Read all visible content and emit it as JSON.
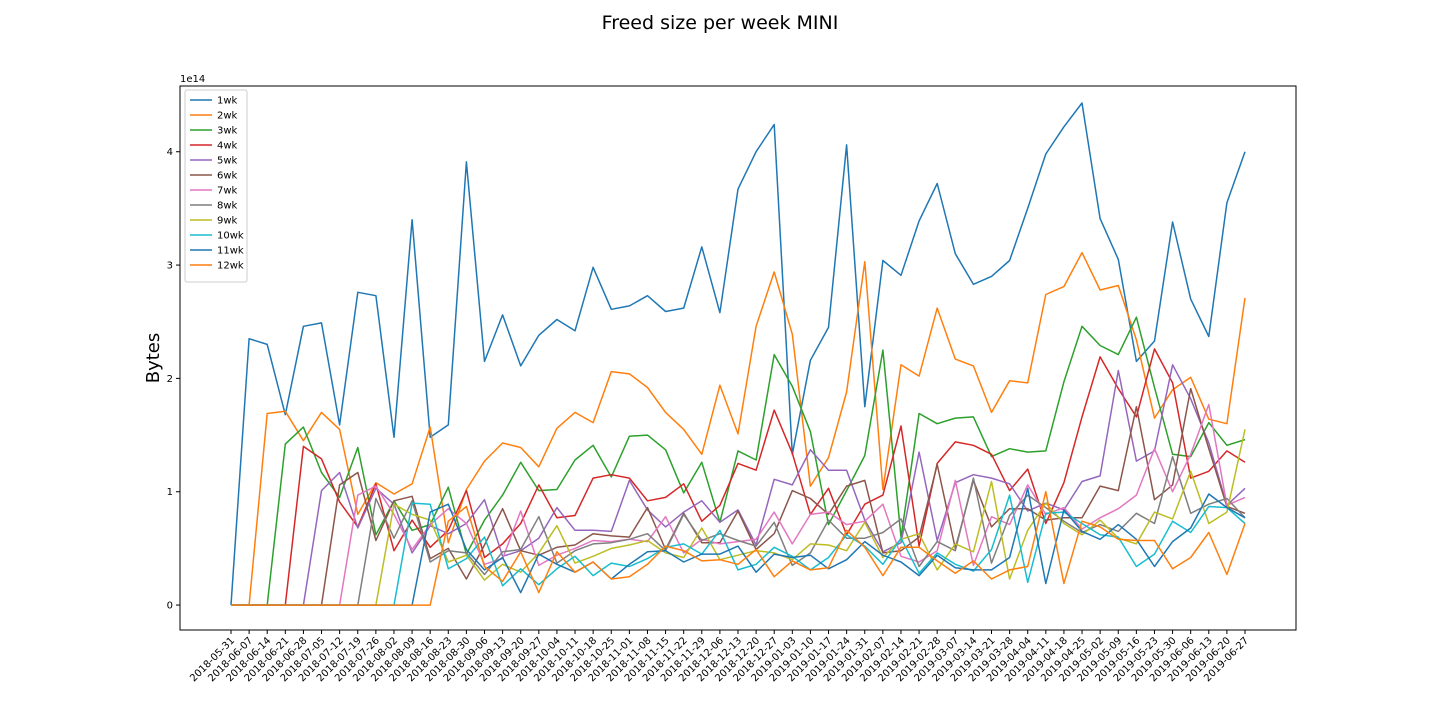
{
  "chart_data": {
    "type": "line",
    "title": "Freed size per week MINI",
    "xlabel": "",
    "ylabel": "Bytes",
    "y_offset_label": "1e14",
    "ylim": [
      -0.22,
      4.58
    ],
    "yticks": [
      0,
      1,
      2,
      3,
      4
    ],
    "ytick_labels": [
      "0",
      "1",
      "2",
      "3",
      "4"
    ],
    "grid": false,
    "legend_position": "upper-left",
    "categories": [
      "2018-05-31",
      "2018-06-07",
      "2018-06-14",
      "2018-06-21",
      "2018-06-28",
      "2018-07-05",
      "2018-07-12",
      "2018-07-19",
      "2018-07-26",
      "2018-08-02",
      "2018-08-09",
      "2018-08-16",
      "2018-08-23",
      "2018-08-30",
      "2018-09-06",
      "2018-09-13",
      "2018-09-20",
      "2018-09-27",
      "2018-10-04",
      "2018-10-11",
      "2018-10-18",
      "2018-10-25",
      "2018-11-01",
      "2018-11-08",
      "2018-11-15",
      "2018-11-22",
      "2018-11-29",
      "2018-12-06",
      "2018-12-13",
      "2018-12-20",
      "2018-12-27",
      "2019-01-03",
      "2019-01-10",
      "2019-01-17",
      "2019-01-24",
      "2019-01-31",
      "2019-02-07",
      "2019-02-14",
      "2019-02-21",
      "2019-02-28",
      "2019-03-07",
      "2019-03-14",
      "2019-03-21",
      "2019-03-28",
      "2019-04-04",
      "2019-04-11",
      "2019-04-18",
      "2019-04-25",
      "2019-05-02",
      "2019-05-09",
      "2019-05-16",
      "2019-05-23",
      "2019-05-30",
      "2019-06-06",
      "2019-06-13",
      "2019-06-20",
      "2019-06-27"
    ],
    "series": [
      {
        "name": "1wk",
        "color": "#1f77b4",
        "values": [
          0,
          2.35,
          2.3,
          1.68,
          2.46,
          2.49,
          1.59,
          2.76,
          2.73,
          1.48,
          3.4,
          1.48,
          1.59,
          3.91,
          2.15,
          2.56,
          2.11,
          2.38,
          2.52,
          2.42,
          2.98,
          2.61,
          2.64,
          2.73,
          2.59,
          2.62,
          3.16,
          2.58,
          3.67,
          4.0,
          4.24,
          1.33,
          2.16,
          2.45,
          4.06,
          1.75,
          3.04,
          2.91,
          3.39,
          3.72,
          3.1,
          2.83,
          2.9,
          3.04,
          3.5,
          3.98,
          4.22,
          4.43,
          3.41,
          3.05,
          2.15,
          2.33,
          3.38,
          2.7,
          2.37,
          3.55,
          4.0
        ]
      },
      {
        "name": "2wk",
        "color": "#ff7f0e",
        "values": [
          0,
          0,
          1.69,
          1.71,
          1.45,
          1.7,
          1.55,
          0.8,
          1.08,
          0.98,
          1.07,
          1.57,
          0.55,
          1.02,
          1.27,
          1.43,
          1.39,
          1.22,
          1.56,
          1.7,
          1.61,
          2.06,
          2.04,
          1.92,
          1.7,
          1.55,
          1.33,
          1.94,
          1.51,
          2.46,
          2.94,
          2.39,
          1.05,
          1.3,
          1.88,
          3.03,
          1.02,
          2.12,
          2.02,
          2.62,
          2.17,
          2.11,
          1.7,
          1.98,
          1.96,
          2.74,
          2.81,
          3.11,
          2.78,
          2.82,
          2.34,
          1.65,
          1.9,
          2.01,
          1.64,
          1.6,
          2.71
        ]
      },
      {
        "name": "3wk",
        "color": "#2ca02c",
        "values": [
          0,
          0,
          0,
          1.42,
          1.57,
          1.17,
          0.95,
          1.39,
          0.62,
          0.92,
          0.66,
          0.71,
          1.04,
          0.45,
          0.75,
          0.97,
          1.26,
          1.01,
          1.02,
          1.28,
          1.41,
          1.13,
          1.49,
          1.5,
          1.37,
          0.99,
          1.26,
          0.73,
          1.36,
          1.28,
          2.21,
          1.93,
          1.53,
          0.71,
          1.01,
          1.32,
          2.25,
          0.6,
          1.69,
          1.6,
          1.65,
          1.66,
          1.31,
          1.38,
          1.35,
          1.36,
          1.97,
          2.46,
          2.29,
          2.21,
          2.54,
          1.92,
          1.33,
          1.31,
          1.61,
          1.41,
          1.46
        ]
      },
      {
        "name": "4wk",
        "color": "#d62728",
        "values": [
          0,
          0,
          0,
          0,
          1.4,
          1.29,
          0.91,
          0.69,
          1.07,
          0.48,
          0.75,
          0.51,
          0.66,
          1.01,
          0.42,
          0.54,
          0.72,
          1.06,
          0.77,
          0.79,
          1.12,
          1.15,
          1.12,
          0.92,
          0.95,
          1.07,
          0.74,
          0.88,
          1.25,
          1.19,
          1.72,
          1.34,
          0.8,
          1.03,
          0.62,
          0.89,
          0.97,
          1.58,
          0.52,
          1.25,
          1.44,
          1.41,
          1.33,
          1.01,
          1.2,
          0.72,
          1.08,
          1.66,
          2.19,
          1.91,
          1.66,
          2.26,
          1.96,
          1.12,
          1.18,
          1.36,
          1.26
        ]
      },
      {
        "name": "5wk",
        "color": "#9467bd",
        "values": [
          0,
          0,
          0,
          0,
          0,
          1.01,
          1.17,
          0.68,
          1.03,
          0.89,
          0.46,
          0.7,
          0.63,
          0.72,
          0.93,
          0.43,
          0.48,
          0.59,
          0.86,
          0.66,
          0.66,
          0.65,
          1.1,
          0.84,
          0.69,
          0.82,
          0.92,
          0.73,
          0.84,
          0.53,
          1.11,
          1.06,
          1.37,
          1.19,
          1.19,
          0.75,
          0.47,
          0.55,
          1.35,
          0.57,
          1.08,
          1.15,
          1.12,
          1.07,
          0.83,
          0.9,
          0.84,
          1.09,
          1.14,
          2.07,
          1.27,
          1.36,
          2.12,
          1.82,
          1.43,
          0.88,
          1.03
        ]
      },
      {
        "name": "6wk",
        "color": "#8c564b",
        "values": [
          0,
          0,
          0,
          0,
          0,
          0,
          1.06,
          1.17,
          0.57,
          0.92,
          0.96,
          0.41,
          0.5,
          0.23,
          0.53,
          0.85,
          0.48,
          0.44,
          0.51,
          0.53,
          0.63,
          0.61,
          0.6,
          0.86,
          0.49,
          0.81,
          0.55,
          0.55,
          0.83,
          0.49,
          0.63,
          1.01,
          0.94,
          0.8,
          1.05,
          1.1,
          0.46,
          0.48,
          0.6,
          1.24,
          0.5,
          1.1,
          0.69,
          0.85,
          0.85,
          0.75,
          0.77,
          0.77,
          1.05,
          1.01,
          1.75,
          0.93,
          1.06,
          1.91,
          1.38,
          0.87,
          0.81
        ]
      },
      {
        "name": "7wk",
        "color": "#e377c2",
        "values": [
          0,
          0,
          0,
          0,
          0,
          0,
          0,
          0.97,
          1.05,
          0.8,
          0.49,
          0.71,
          0.85,
          0.72,
          0.36,
          0.41,
          0.83,
          0.35,
          0.44,
          0.5,
          0.57,
          0.56,
          0.58,
          0.56,
          0.78,
          0.46,
          0.58,
          0.54,
          0.56,
          0.58,
          0.82,
          0.54,
          0.8,
          0.82,
          0.71,
          0.74,
          0.89,
          0.43,
          0.38,
          0.48,
          1.1,
          0.35,
          0.78,
          0.71,
          1.06,
          0.8,
          0.86,
          0.67,
          0.77,
          0.85,
          0.97,
          1.38,
          1.0,
          1.33,
          1.77,
          0.88,
          0.95
        ]
      },
      {
        "name": "8wk",
        "color": "#7f7f7f",
        "values": [
          0,
          0,
          0,
          0,
          0,
          0,
          0,
          0,
          0.94,
          0.59,
          0.92,
          0.38,
          0.48,
          0.46,
          0.27,
          0.47,
          0.49,
          0.78,
          0.37,
          0.48,
          0.54,
          0.55,
          0.58,
          0.63,
          0.48,
          0.8,
          0.57,
          0.63,
          0.57,
          0.52,
          0.73,
          0.35,
          0.46,
          0.75,
          0.59,
          0.59,
          0.64,
          0.76,
          0.34,
          0.56,
          0.48,
          1.12,
          0.37,
          0.79,
          0.97,
          0.86,
          0.74,
          0.64,
          0.71,
          0.65,
          0.81,
          0.72,
          1.31,
          0.81,
          0.89,
          0.94,
          0.77
        ]
      },
      {
        "name": "9wk",
        "color": "#bcbd22",
        "values": [
          0,
          0,
          0,
          0,
          0,
          0,
          0,
          0,
          0,
          0.89,
          0.8,
          0.75,
          0.38,
          0.44,
          0.22,
          0.36,
          0.29,
          0.46,
          0.7,
          0.37,
          0.43,
          0.5,
          0.53,
          0.57,
          0.46,
          0.42,
          0.68,
          0.4,
          0.44,
          0.48,
          0.46,
          0.4,
          0.54,
          0.53,
          0.48,
          0.73,
          0.42,
          0.58,
          0.63,
          0.31,
          0.54,
          0.47,
          1.09,
          0.23,
          0.66,
          0.9,
          0.72,
          0.62,
          0.75,
          0.59,
          0.54,
          0.82,
          0.76,
          1.18,
          0.72,
          0.82,
          1.55
        ]
      },
      {
        "name": "10wk",
        "color": "#17becf",
        "values": [
          0,
          0,
          0,
          0,
          0,
          0,
          0,
          0,
          0,
          0,
          0.9,
          0.89,
          0.32,
          0.41,
          0.6,
          0.17,
          0.32,
          0.18,
          0.32,
          0.43,
          0.26,
          0.37,
          0.34,
          0.41,
          0.51,
          0.54,
          0.45,
          0.66,
          0.31,
          0.36,
          0.51,
          0.43,
          0.31,
          0.42,
          0.62,
          0.52,
          0.36,
          0.59,
          0.28,
          0.46,
          0.36,
          0.3,
          0.49,
          0.97,
          0.2,
          0.81,
          0.82,
          0.72,
          0.62,
          0.6,
          0.34,
          0.45,
          0.74,
          0.64,
          0.87,
          0.86,
          0.72
        ]
      },
      {
        "name": "11wk",
        "color": "#1f77b4",
        "values": [
          0,
          0,
          0,
          0,
          0,
          0,
          0,
          0,
          0,
          0,
          0,
          0.82,
          0.89,
          0.49,
          0.31,
          0.42,
          0.11,
          0.45,
          0.36,
          0.29,
          0.38,
          0.23,
          0.36,
          0.47,
          0.48,
          0.38,
          0.45,
          0.45,
          0.52,
          0.29,
          0.45,
          0.42,
          0.44,
          0.32,
          0.4,
          0.56,
          0.44,
          0.38,
          0.26,
          0.44,
          0.33,
          0.31,
          0.31,
          0.42,
          1.03,
          0.19,
          0.84,
          0.65,
          0.58,
          0.71,
          0.58,
          0.34,
          0.56,
          0.68,
          0.98,
          0.86,
          0.77
        ]
      },
      {
        "name": "12wk",
        "color": "#ff7f0e",
        "values": [
          0,
          0,
          0,
          0,
          0,
          0,
          0,
          0,
          0,
          0,
          0,
          0,
          0.74,
          0.87,
          0.34,
          0.21,
          0.47,
          0.11,
          0.47,
          0.29,
          0.38,
          0.23,
          0.25,
          0.36,
          0.52,
          0.48,
          0.39,
          0.4,
          0.36,
          0.49,
          0.25,
          0.39,
          0.31,
          0.33,
          0.66,
          0.51,
          0.26,
          0.51,
          0.51,
          0.39,
          0.28,
          0.39,
          0.23,
          0.31,
          0.34,
          1.0,
          0.19,
          0.74,
          0.69,
          0.58,
          0.57,
          0.57,
          0.32,
          0.42,
          0.64,
          0.27,
          0.72
        ]
      }
    ]
  }
}
